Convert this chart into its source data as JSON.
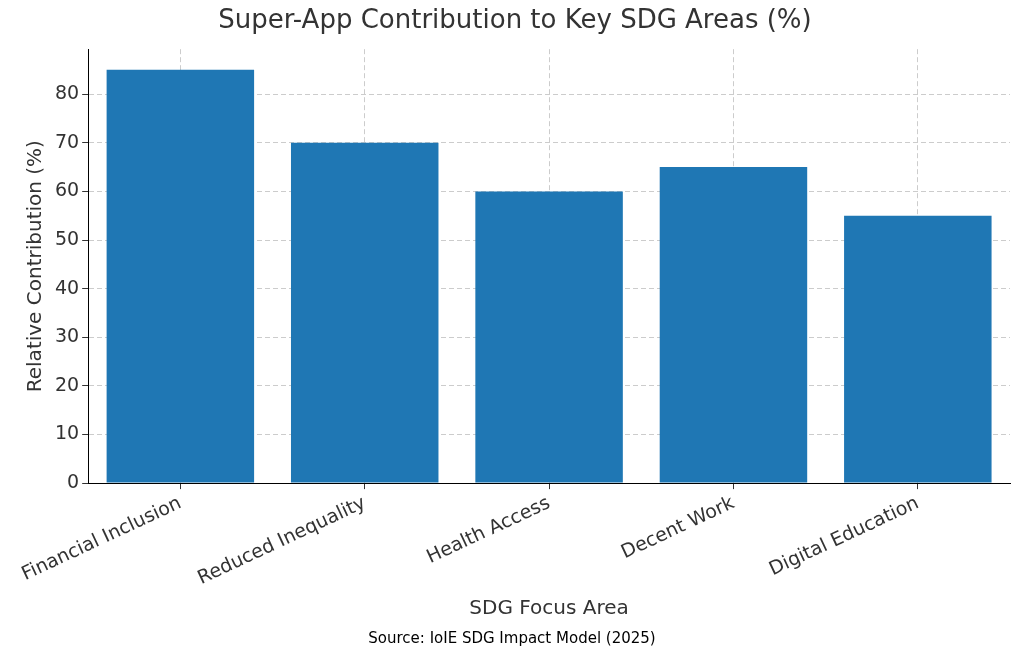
{
  "chart_data": {
    "type": "bar",
    "title": "Super-App Contribution to Key SDG Areas (%)",
    "xlabel": "SDG Focus Area",
    "ylabel": "Relative Contribution (%)",
    "categories": [
      "Financial Inclusion",
      "Reduced Inequality",
      "Health Access",
      "Decent Work",
      "Digital Education"
    ],
    "values": [
      85,
      70,
      60,
      65,
      55
    ],
    "color": "#1f77b4",
    "ylim": [
      0,
      89.25
    ],
    "yticks": [
      0,
      10,
      20,
      30,
      40,
      50,
      60,
      70,
      80
    ],
    "grid": true,
    "annotations": [
      "Source: IoIE SDG Impact Model (2025)"
    ]
  }
}
